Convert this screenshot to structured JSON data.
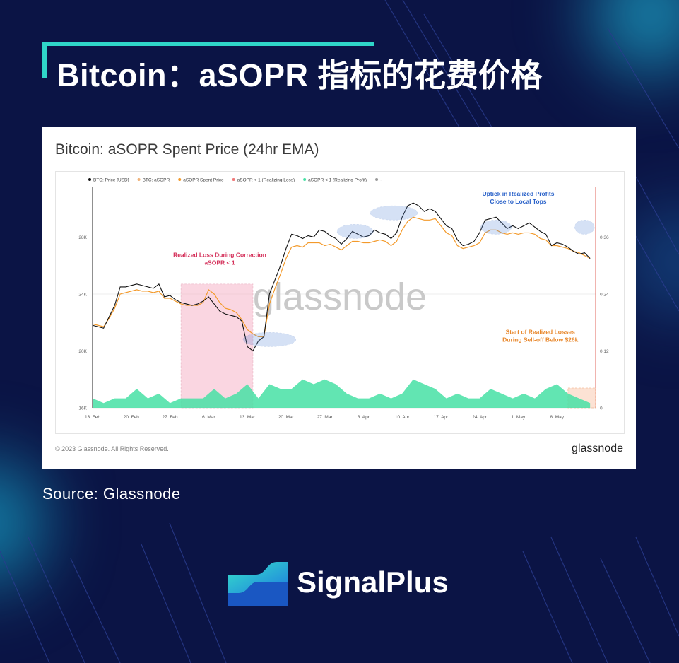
{
  "page": {
    "title": "Bitcoin：aSOPR 指标的花费价格",
    "source": "Source: Glassnode",
    "brand": "SignalPlus",
    "colors": {
      "background": "#0b1445",
      "accent": "#2fd6c8"
    }
  },
  "chart_data": {
    "type": "line",
    "title": "Bitcoin: aSOPR Spent Price (24hr EMA)",
    "copyright": "© 2023 Glassnode. All Rights Reserved.",
    "brand": "glassnode",
    "watermark": "glassnode",
    "legend": [
      {
        "label": "BTC: Price [USD]",
        "color": "#111111"
      },
      {
        "label": "BTC: aSOPR",
        "color": "#f0b37a"
      },
      {
        "label": "aSOPR Spent Price",
        "color": "#f39a2b"
      },
      {
        "label": "aSOPR < 1 (Realizing Loss)",
        "color": "#f07a7a"
      },
      {
        "label": "aSOPR < 1 (Realizing Profit)",
        "color": "#46e0a4"
      },
      {
        "label": "-",
        "color": "#999999"
      }
    ],
    "x_ticks": [
      "13. Feb",
      "20. Feb",
      "27. Feb",
      "6. Mar",
      "13. Mar",
      "20. Mar",
      "27. Mar",
      "3. Apr",
      "10. Apr",
      "17. Apr",
      "24. Apr",
      "1. May",
      "8. May"
    ],
    "y_left_ticks": [
      "16K",
      "20K",
      "24K",
      "28K"
    ],
    "y_left_values": [
      16000,
      20000,
      24000,
      28000
    ],
    "y_right_ticks": [
      "0",
      "0.12",
      "0.24",
      "0.36"
    ],
    "y_right_values": [
      0,
      0.12,
      0.24,
      0.36
    ],
    "ylim_left": [
      16000,
      31500
    ],
    "x_range_days": [
      0,
      91
    ],
    "price_series": {
      "name": "BTC: Price [USD]",
      "x_days": [
        0,
        2,
        3,
        4,
        5,
        6,
        8,
        9,
        10,
        11,
        12,
        13,
        14,
        15,
        16,
        17,
        18,
        19,
        20,
        21,
        22,
        23,
        24,
        25,
        26,
        27,
        28,
        29,
        30,
        31,
        32,
        33,
        34,
        35,
        36,
        37,
        38,
        39,
        40,
        41,
        42,
        43,
        44,
        45,
        46,
        47,
        48,
        49,
        50,
        51,
        52,
        53,
        54,
        55,
        56,
        57,
        58,
        59,
        60,
        61,
        62,
        63,
        64,
        65,
        66,
        67,
        68,
        69,
        70,
        71,
        72,
        73,
        74,
        75,
        76,
        77,
        78,
        79,
        80,
        81,
        82,
        83,
        84,
        85,
        86,
        87,
        88,
        89,
        90
      ],
      "values": [
        21800,
        21600,
        22400,
        23200,
        24500,
        24500,
        24700,
        24600,
        24500,
        24400,
        24700,
        23800,
        23900,
        23600,
        23400,
        23300,
        23200,
        23300,
        23500,
        23800,
        23300,
        22800,
        22600,
        22500,
        22400,
        22100,
        20300,
        20000,
        20700,
        21000,
        24000,
        25000,
        26000,
        27200,
        28200,
        28100,
        27900,
        28100,
        28000,
        28500,
        28400,
        28100,
        27900,
        27500,
        27900,
        28400,
        28200,
        28000,
        28100,
        28500,
        28300,
        28200,
        27900,
        28300,
        29400,
        30200,
        30400,
        30200,
        29800,
        30000,
        29800,
        29300,
        28800,
        28600,
        27800,
        27400,
        27500,
        27700,
        28300,
        29200,
        29300,
        29400,
        29000,
        28600,
        28800,
        28600,
        28800,
        29000,
        28700,
        28400,
        28200,
        27400,
        27600,
        27500,
        27300,
        27000,
        26800,
        26900,
        26500
      ]
    },
    "spent_price_series": {
      "name": "aSOPR Spent Price",
      "x_days": [
        0,
        2,
        3,
        4,
        5,
        6,
        8,
        9,
        10,
        11,
        12,
        13,
        14,
        15,
        16,
        17,
        18,
        19,
        20,
        21,
        22,
        23,
        24,
        25,
        26,
        27,
        28,
        29,
        30,
        31,
        32,
        33,
        34,
        35,
        36,
        37,
        38,
        39,
        40,
        41,
        42,
        43,
        44,
        45,
        46,
        47,
        48,
        49,
        50,
        51,
        52,
        53,
        54,
        55,
        56,
        57,
        58,
        59,
        60,
        61,
        62,
        63,
        64,
        65,
        66,
        67,
        68,
        69,
        70,
        71,
        72,
        73,
        74,
        75,
        76,
        77,
        78,
        79,
        80,
        81,
        82,
        83,
        84,
        85,
        86,
        87,
        88,
        89,
        90
      ],
      "values": [
        21900,
        21700,
        22300,
        23000,
        24000,
        24100,
        24300,
        24200,
        24200,
        24100,
        24200,
        23700,
        23700,
        23500,
        23300,
        23200,
        23200,
        23200,
        23400,
        24300,
        24000,
        23400,
        23000,
        22900,
        22700,
        22200,
        21500,
        21200,
        21000,
        21000,
        23300,
        24400,
        25400,
        26500,
        27300,
        27400,
        27300,
        27600,
        27600,
        27600,
        27400,
        27500,
        27300,
        27100,
        27400,
        27700,
        27700,
        27600,
        27600,
        27700,
        27800,
        27700,
        27400,
        27700,
        28500,
        29100,
        29400,
        29300,
        29200,
        29200,
        29300,
        28800,
        28300,
        28100,
        27400,
        27200,
        27300,
        27400,
        27600,
        28300,
        28500,
        28500,
        28300,
        28200,
        28300,
        28200,
        28300,
        28300,
        28200,
        27900,
        27800,
        27400,
        27400,
        27300,
        27200,
        27000,
        26900,
        26700,
        26500
      ]
    },
    "activity_series": {
      "name": "aSOPR < 1 (Realizing Profit) / (Realizing Loss)",
      "x_days": [
        0,
        2,
        4,
        6,
        8,
        10,
        12,
        14,
        16,
        18,
        20,
        22,
        24,
        26,
        28,
        30,
        32,
        34,
        36,
        38,
        40,
        42,
        44,
        46,
        48,
        50,
        52,
        54,
        56,
        58,
        60,
        62,
        64,
        66,
        68,
        70,
        72,
        74,
        76,
        78,
        80,
        82,
        84,
        86,
        88,
        90
      ],
      "values": [
        0.02,
        0.01,
        0.02,
        0.02,
        0.04,
        0.02,
        0.03,
        0.01,
        0.02,
        0.02,
        0.02,
        0.04,
        0.02,
        0.03,
        0.05,
        0.02,
        0.05,
        0.04,
        0.04,
        0.06,
        0.05,
        0.06,
        0.05,
        0.03,
        0.02,
        0.02,
        0.03,
        0.02,
        0.03,
        0.06,
        0.05,
        0.04,
        0.02,
        0.03,
        0.02,
        0.02,
        0.04,
        0.03,
        0.02,
        0.03,
        0.02,
        0.04,
        0.05,
        0.03,
        0.02,
        0.01
      ],
      "loss_interval_days": [
        [
          16,
          29
        ],
        [
          86,
          91
        ]
      ]
    },
    "annotations": [
      {
        "text": [
          "Realized Loss During Correction",
          "aSOPR < 1"
        ],
        "color": "#d4305a"
      },
      {
        "text": [
          "Uptick in Realized Profits",
          "Close to Local Tops"
        ],
        "color": "#2a62c9"
      },
      {
        "text": [
          "Start of Realized Losses",
          "During Sell-off Below $26k"
        ],
        "color": "#e8872b"
      }
    ]
  }
}
